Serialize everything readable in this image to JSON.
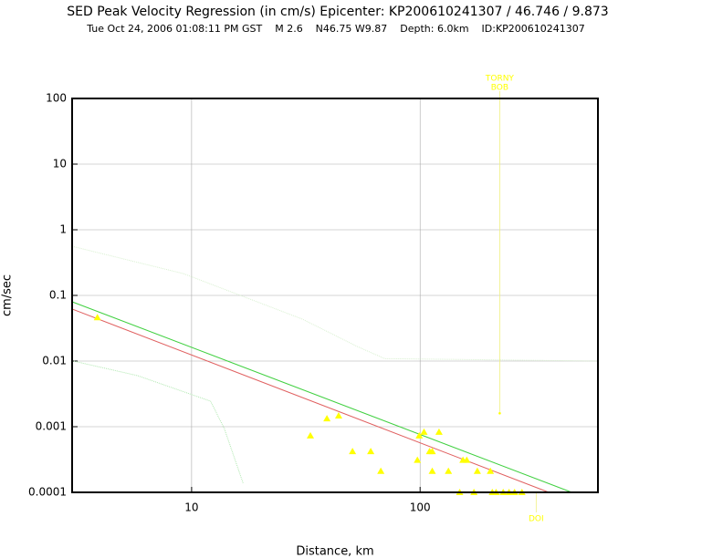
{
  "chart_data": {
    "type": "scatter",
    "title": "SED Peak Velocity Regression (in cm/s) Epicenter: KP200610241307 / 46.746 / 9.873",
    "subtitle": "Tue Oct 24, 2006 01:08:11 PM GST    M 2.6    N46.75 W9.87    Depth: 6.0km    ID:KP200610241307",
    "x_label": "Distance, km",
    "y_label": "cm/sec",
    "xscale": "log",
    "yscale": "log",
    "xlim": [
      3,
      600
    ],
    "ylim": [
      0.0001,
      100
    ],
    "xticks": [
      10,
      100
    ],
    "yticks": [
      100,
      10,
      1,
      0.1,
      0.01,
      0.001,
      0.0001
    ],
    "grid": true,
    "points": {
      "color": "#ffff00",
      "x": [
        3.87,
        33.1,
        39.1,
        44,
        50.6,
        60.8,
        67.3,
        97.3,
        99.1,
        104,
        110,
        113,
        113,
        121,
        133,
        154,
        160,
        178,
        203,
        149,
        172,
        207,
        215,
        231,
        245,
        259,
        279
      ],
      "values": [
        0.046,
        0.00073,
        0.00133,
        0.00147,
        0.00042,
        0.00042,
        0.00021,
        0.00031,
        0.00073,
        0.00083,
        0.00042,
        0.00042,
        0.00021,
        0.00083,
        0.00021,
        0.00031,
        0.00031,
        0.00021,
        0.00021,
        0.0001,
        0.0001,
        0.0001,
        0.0001,
        0.0001,
        0.0001,
        0.0001,
        0.0001
      ]
    },
    "curves": [
      {
        "color": "#e06060",
        "dash": false,
        "x": [
          3,
          366
        ],
        "values": [
          0.062,
          0.0001
        ]
      },
      {
        "color": "#40d040",
        "dash": false,
        "x": [
          3,
          461
        ],
        "values": [
          0.08,
          0.0001
        ]
      },
      {
        "color": "#b0e8b0",
        "dash": true,
        "x": [
          3,
          5.8,
          12.1,
          13.9,
          16.8
        ],
        "values": [
          0.0101,
          0.006,
          0.00245,
          0.00094,
          0.000138
        ]
      },
      {
        "color": "#d8f0d0",
        "dash": true,
        "x": [
          3,
          9.2,
          30.5,
          53,
          70,
          600
        ],
        "values": [
          0.56,
          0.215,
          0.0436,
          0.0167,
          0.0109,
          0.01
        ]
      }
    ],
    "stations": [
      {
        "labels": [
          "TORNY",
          "BOB"
        ],
        "x": 223,
        "value": 0.0016,
        "color": "#ffff00"
      },
      {
        "labels": [
          "DOI"
        ],
        "x": 322,
        "value": 0.0001,
        "color": "#ffff00"
      }
    ]
  }
}
